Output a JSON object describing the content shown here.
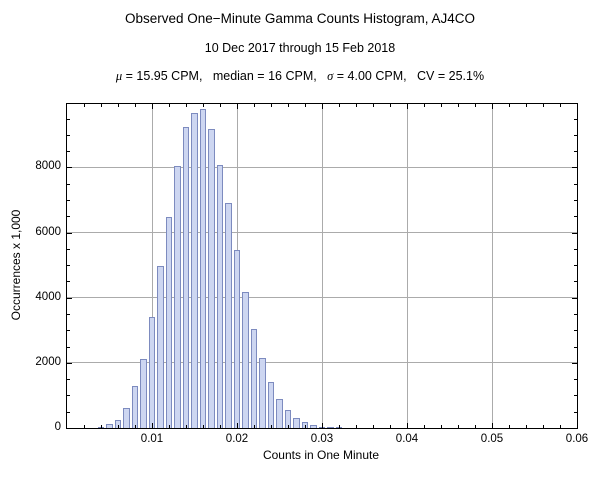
{
  "title": "Observed One−Minute Gamma Counts Histogram, AJ4CO",
  "subtitle": "10 Dec 2017 through 15 Feb 2018",
  "stats": {
    "parts": [
      {
        "text": "μ"
      },
      {
        "text": " = 15.95 CPM,   median = 16 CPM,   "
      },
      {
        "text": "σ"
      },
      {
        "text": " = 4.00 CPM,   CV = 25.1%"
      }
    ]
  },
  "chart_data": {
    "type": "bar",
    "title": "Observed One−Minute Gamma Counts Histogram, AJ4CO",
    "subtitle": "10 Dec 2017 through 15 Feb 2018",
    "xlabel": "Counts in One Minute",
    "ylabel": "Occurrences x 1,000",
    "xlim": [
      0,
      0.06
    ],
    "ylim": [
      0,
      9950
    ],
    "grid": true,
    "frame": true,
    "legend": "none",
    "bin_width": 0.001,
    "x": [
      0.004,
      0.005,
      0.006,
      0.007,
      0.008,
      0.009,
      0.01,
      0.011,
      0.012,
      0.013,
      0.014,
      0.015,
      0.016,
      0.017,
      0.018,
      0.019,
      0.02,
      0.021,
      0.022,
      0.023,
      0.024,
      0.025,
      0.026,
      0.027,
      0.028,
      0.029,
      0.03,
      0.031,
      0.032
    ],
    "values": [
      40,
      110,
      260,
      620,
      1300,
      2120,
      3420,
      4980,
      6480,
      8060,
      9240,
      9660,
      9800,
      9170,
      8090,
      6900,
      5470,
      4190,
      3050,
      2140,
      1420,
      900,
      540,
      310,
      170,
      90,
      45,
      22,
      10
    ],
    "x_ticks": {
      "values": [
        0.01,
        0.02,
        0.03,
        0.04,
        0.05,
        0.06
      ],
      "labels": [
        "0.01",
        "0.02",
        "0.03",
        "0.04",
        "0.05",
        "0.06"
      ],
      "minor_step": 0.002
    },
    "y_ticks": {
      "values": [
        0,
        2000,
        4000,
        6000,
        8000
      ],
      "labels": [
        "0",
        "2000",
        "4000",
        "6000",
        "8000"
      ],
      "minor_step": 500
    },
    "colors": {
      "bar_fill": "#cdd6f1",
      "bar_edge": "#7d8bbf",
      "grid": "#ababab",
      "frame": "#000000"
    }
  }
}
